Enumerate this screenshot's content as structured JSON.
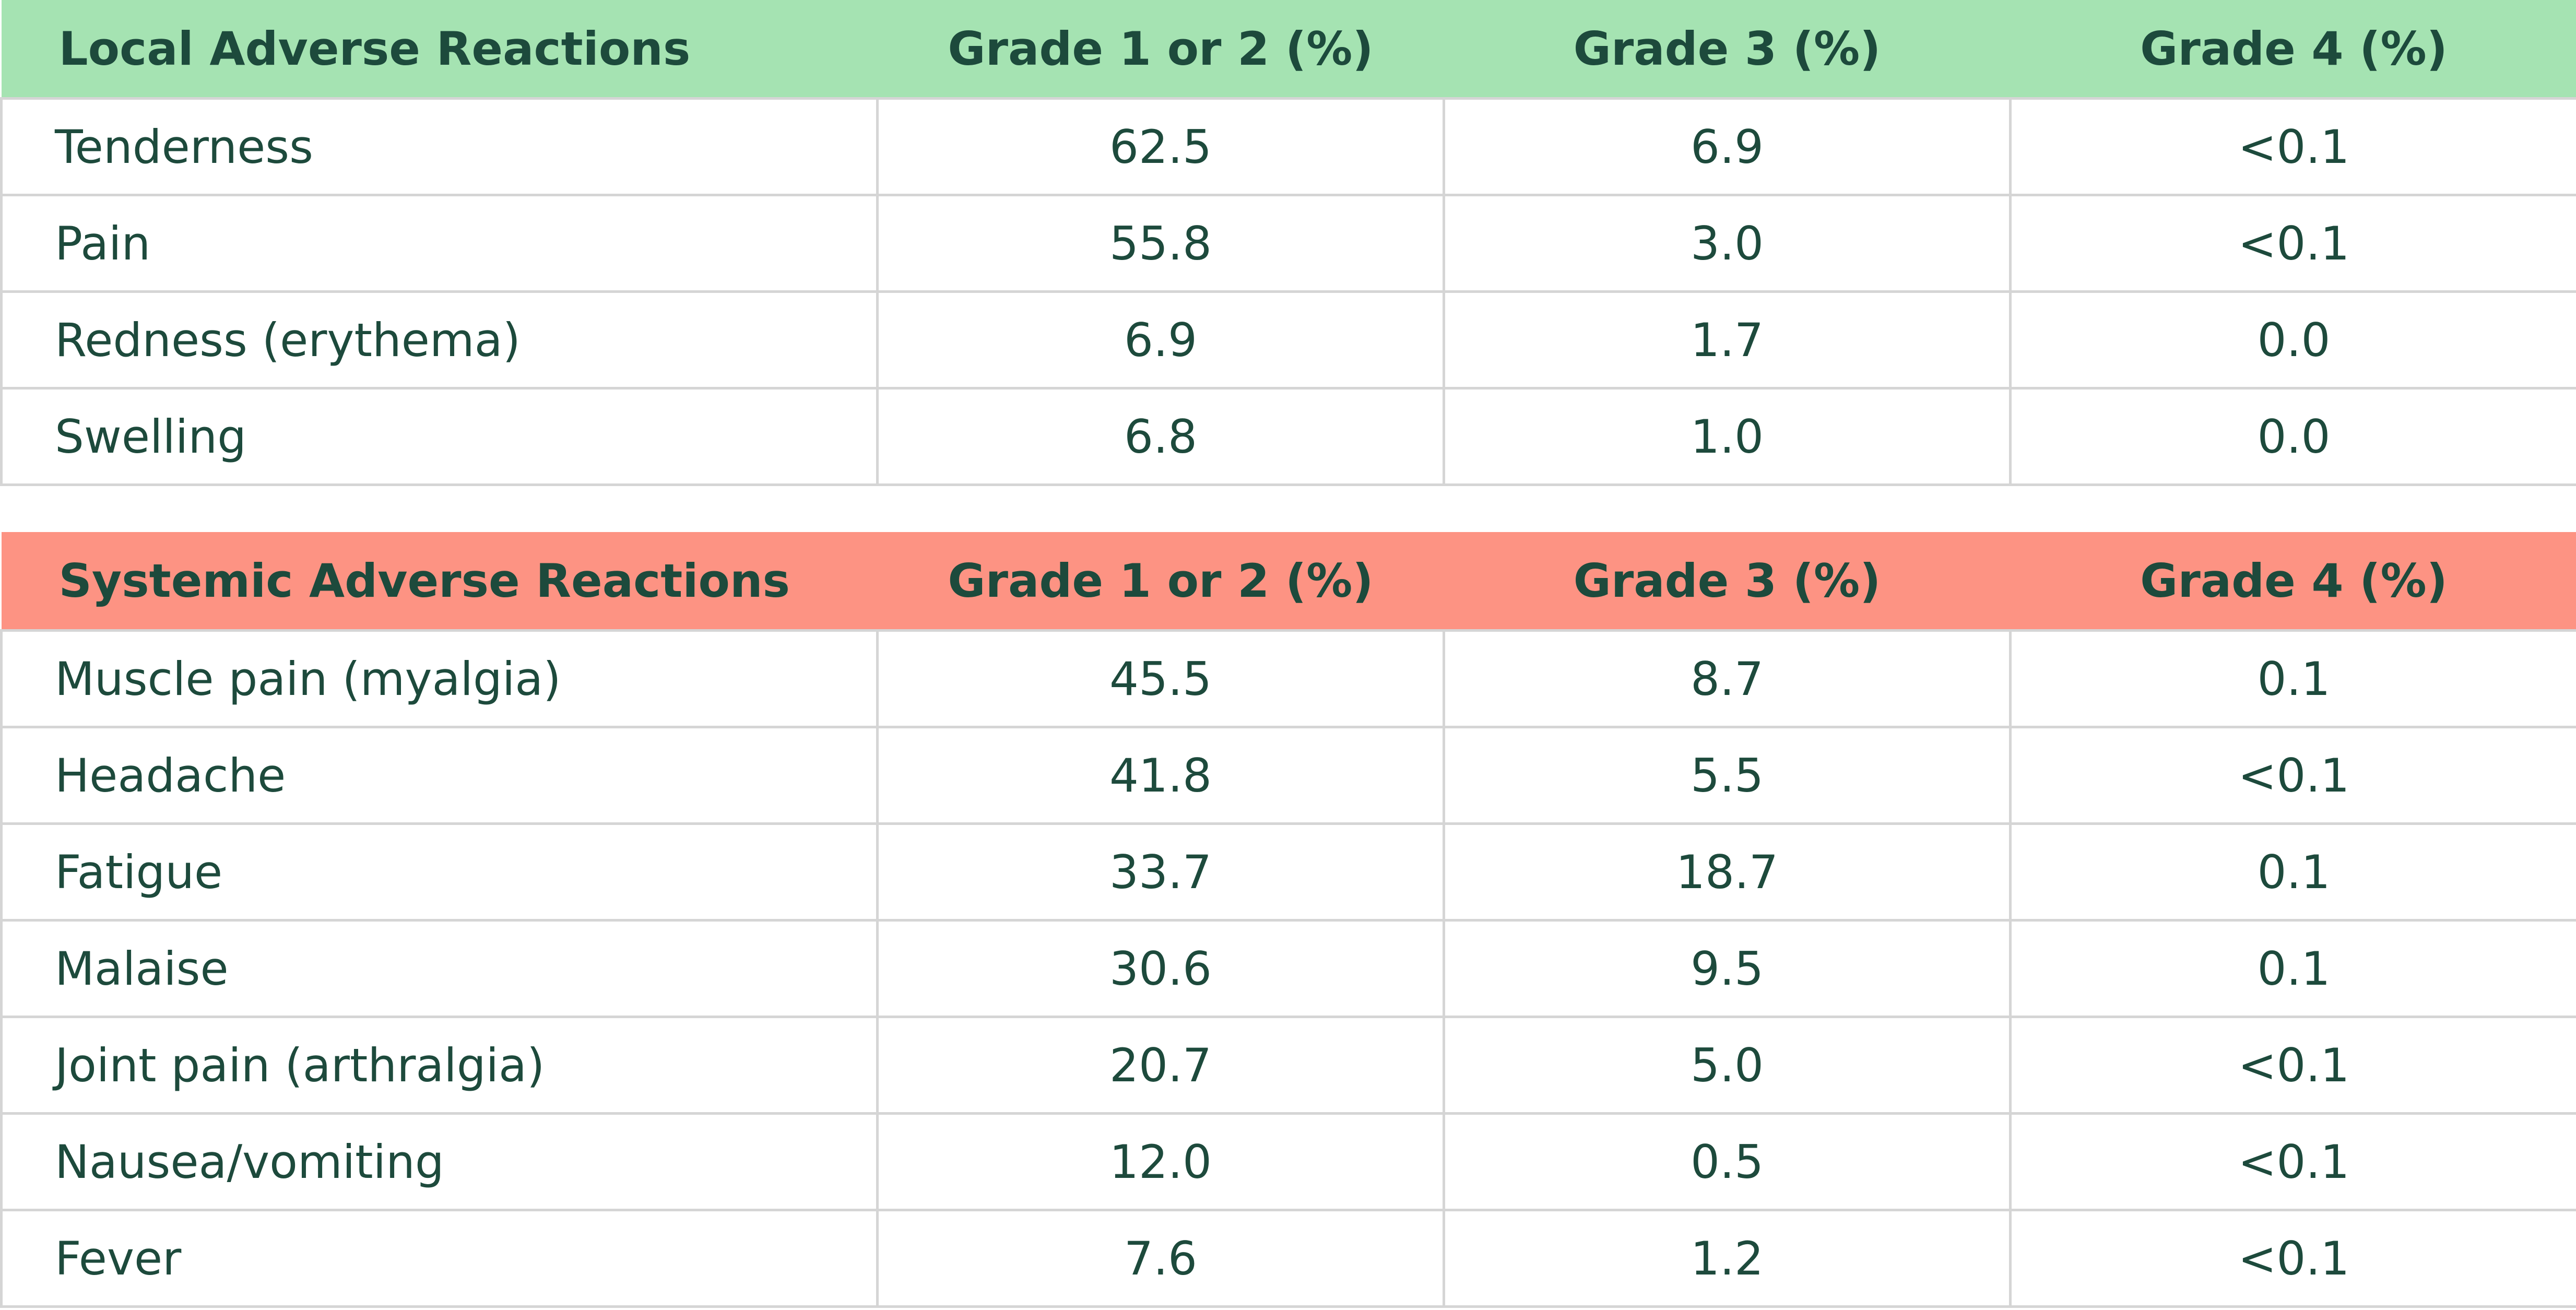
{
  "local": {
    "headers": [
      "Local Adverse Reactions",
      "Grade 1 or 2 (%)",
      "Grade 3 (%)",
      "Grade 4 (%)"
    ],
    "rows": [
      [
        "Tenderness",
        "62.5",
        "6.9",
        "<0.1"
      ],
      [
        "Pain",
        "55.8",
        "3.0",
        "<0.1"
      ],
      [
        "Redness (erythema)",
        "6.9",
        "1.7",
        "0.0"
      ],
      [
        "Swelling",
        "6.8",
        "1.0",
        "0.0"
      ]
    ]
  },
  "systemic": {
    "headers": [
      "Systemic Adverse Reactions",
      "Grade 1 or 2 (%)",
      "Grade 3 (%)",
      "Grade 4 (%)"
    ],
    "rows": [
      [
        "Muscle pain (myalgia)",
        "45.5",
        "8.7",
        "0.1"
      ],
      [
        "Headache",
        "41.8",
        "5.5",
        "<0.1"
      ],
      [
        "Fatigue",
        "33.7",
        "18.7",
        "0.1"
      ],
      [
        "Malaise",
        "30.6",
        "9.5",
        "0.1"
      ],
      [
        "Joint pain (arthralgia)",
        "20.7",
        "5.0",
        "<0.1"
      ],
      [
        "Nausea/vomiting",
        "12.0",
        "0.5",
        "<0.1"
      ],
      [
        "Fever",
        "7.6",
        "1.2",
        "<0.1"
      ]
    ]
  },
  "colors": {
    "local_header_bg": "#a5e3b2",
    "systemic_header_bg": "#fd9383",
    "text": "#1d4a3c",
    "grid": "#d5d5d5"
  }
}
